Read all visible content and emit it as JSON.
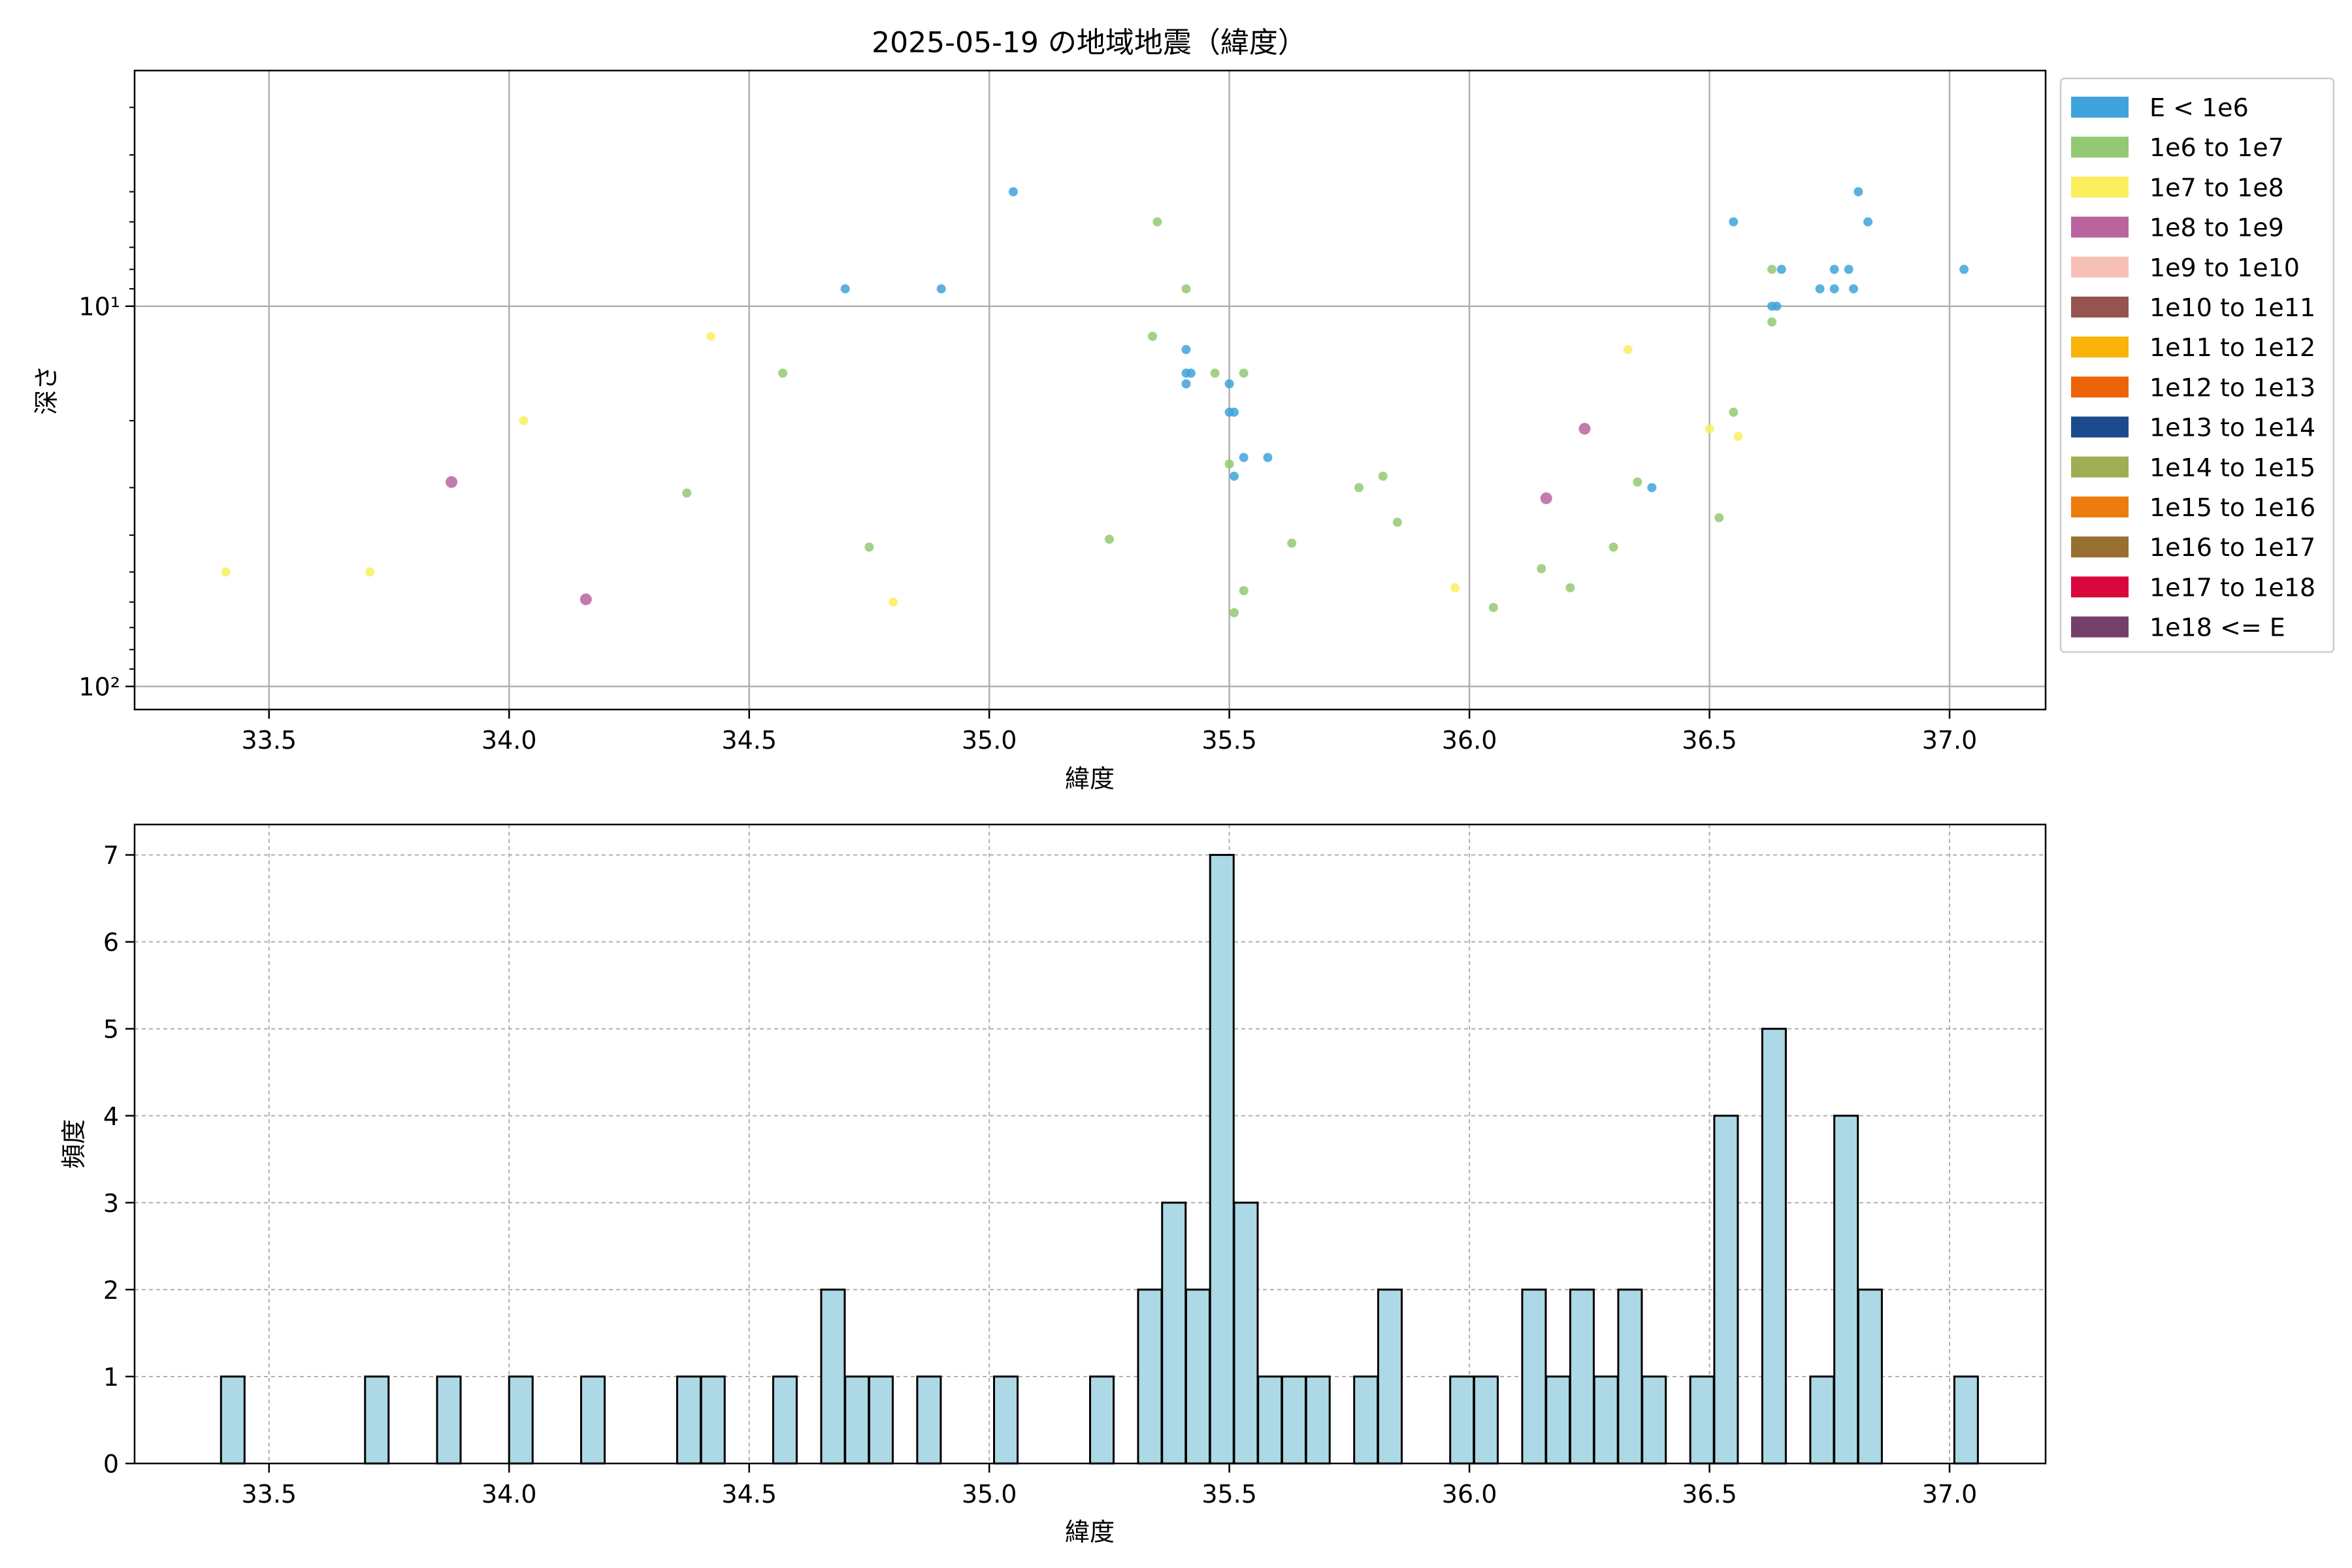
{
  "chart_data": [
    {
      "type": "scatter",
      "title": "2025-05-19 の地域地震（緯度）",
      "xlabel": "緯度",
      "ylabel": "深さ",
      "xlim": [
        33.22,
        37.2
      ],
      "ylim": [
        115,
        2.4
      ],
      "yscale": "log",
      "y_inverted": true,
      "grid": true,
      "legend_placement": "outside-right",
      "x_ticks": [
        "33.5",
        "34.0",
        "34.5",
        "35.0",
        "35.5",
        "36.0",
        "36.5",
        "37.0"
      ],
      "y_ticks": [
        {
          "value": 10,
          "label": "10¹"
        },
        {
          "value": 100,
          "label": "10²"
        }
      ],
      "legend": [
        {
          "label": "E < 1e6",
          "color": "#3fa3dc"
        },
        {
          "label": "1e6 to 1e7",
          "color": "#94c973"
        },
        {
          "label": "1e7 to 1e8",
          "color": "#fbef60"
        },
        {
          "label": "1e8 to 1e9",
          "color": "#b9649f"
        },
        {
          "label": "1e9 to 1e10",
          "color": "#f6c0b6"
        },
        {
          "label": "1e10 to 1e11",
          "color": "#955450"
        },
        {
          "label": "1e11 to 1e12",
          "color": "#fab308"
        },
        {
          "label": "1e12 to 1e13",
          "color": "#ed6307"
        },
        {
          "label": "1e13 to 1e14",
          "color": "#1c4a8f"
        },
        {
          "label": "1e14 to 1e15",
          "color": "#9eae52"
        },
        {
          "label": "1e15 to 1e16",
          "color": "#ec7c0d"
        },
        {
          "label": "1e16 to 1e17",
          "color": "#976f2e"
        },
        {
          "label": "1e17 to 1e18",
          "color": "#d8073c"
        },
        {
          "label": "1e18 <= E",
          "color": "#743f68"
        }
      ],
      "series": [
        {
          "class": 0,
          "points": [
            [
              34.7,
              9
            ],
            [
              34.9,
              9
            ],
            [
              35.05,
              5
            ],
            [
              35.41,
              13
            ],
            [
              35.41,
              15
            ],
            [
              35.42,
              15
            ],
            [
              35.41,
              16
            ],
            [
              35.5,
              16
            ],
            [
              35.5,
              19
            ],
            [
              35.51,
              19
            ],
            [
              35.53,
              25
            ],
            [
              35.58,
              25
            ],
            [
              35.51,
              28
            ],
            [
              36.38,
              30
            ],
            [
              36.55,
              6
            ],
            [
              36.63,
              10
            ],
            [
              36.64,
              10
            ],
            [
              36.65,
              8
            ],
            [
              36.73,
              9
            ],
            [
              36.76,
              9
            ],
            [
              36.76,
              8
            ],
            [
              36.79,
              8
            ],
            [
              36.8,
              9
            ],
            [
              36.81,
              5
            ],
            [
              36.83,
              6
            ],
            [
              37.03,
              8
            ]
          ]
        },
        {
          "class": 1,
          "points": [
            [
              35.35,
              6
            ],
            [
              35.41,
              9
            ],
            [
              35.34,
              12
            ],
            [
              35.47,
              15
            ],
            [
              35.53,
              15
            ],
            [
              34.57,
              15
            ],
            [
              34.37,
              31
            ],
            [
              34.75,
              43
            ],
            [
              35.25,
              41
            ],
            [
              35.5,
              26
            ],
            [
              35.53,
              56
            ],
            [
              35.51,
              64
            ],
            [
              35.63,
              42
            ],
            [
              35.77,
              30
            ],
            [
              35.82,
              28
            ],
            [
              35.85,
              37
            ],
            [
              36.05,
              62
            ],
            [
              36.15,
              49
            ],
            [
              36.21,
              55
            ],
            [
              36.3,
              43
            ],
            [
              36.35,
              29
            ],
            [
              36.52,
              36
            ],
            [
              36.55,
              19
            ],
            [
              36.63,
              8
            ],
            [
              36.63,
              11
            ]
          ]
        },
        {
          "class": 2,
          "points": [
            [
              33.41,
              50
            ],
            [
              33.71,
              50
            ],
            [
              34.03,
              20
            ],
            [
              34.42,
              12
            ],
            [
              34.8,
              60
            ],
            [
              35.97,
              55
            ],
            [
              36.33,
              13
            ],
            [
              36.5,
              21
            ],
            [
              36.56,
              22
            ]
          ]
        },
        {
          "class": 3,
          "points": [
            [
              33.88,
              29
            ],
            [
              34.16,
              59
            ],
            [
              36.16,
              32
            ],
            [
              36.24,
              21
            ]
          ]
        }
      ]
    },
    {
      "type": "bar",
      "title": "",
      "xlabel": "緯度",
      "ylabel": "頻度",
      "xlim": [
        33.22,
        37.2
      ],
      "ylim": [
        0,
        7.35
      ],
      "grid": true,
      "grid_style": "dashed",
      "bar_color": "#add8e6",
      "bar_edge_color": "#000000",
      "bin_width": 0.049,
      "x_ticks": [
        "33.5",
        "34.0",
        "34.5",
        "35.0",
        "35.5",
        "36.0",
        "36.5",
        "37.0"
      ],
      "y_ticks": [
        "0",
        "1",
        "2",
        "3",
        "4",
        "5",
        "6",
        "7"
      ],
      "bins": [
        {
          "left": 33.4,
          "count": 1
        },
        {
          "left": 33.7,
          "count": 1
        },
        {
          "left": 33.85,
          "count": 1
        },
        {
          "left": 34.0,
          "count": 1
        },
        {
          "left": 34.15,
          "count": 1
        },
        {
          "left": 34.35,
          "count": 1
        },
        {
          "left": 34.4,
          "count": 1
        },
        {
          "left": 34.55,
          "count": 1
        },
        {
          "left": 34.65,
          "count": 2
        },
        {
          "left": 34.7,
          "count": 1
        },
        {
          "left": 34.75,
          "count": 1
        },
        {
          "left": 34.85,
          "count": 1
        },
        {
          "left": 35.01,
          "count": 1
        },
        {
          "left": 35.21,
          "count": 1
        },
        {
          "left": 35.31,
          "count": 2
        },
        {
          "left": 35.36,
          "count": 3
        },
        {
          "left": 35.41,
          "count": 2
        },
        {
          "left": 35.46,
          "count": 7
        },
        {
          "left": 35.51,
          "count": 3
        },
        {
          "left": 35.56,
          "count": 1
        },
        {
          "left": 35.61,
          "count": 1
        },
        {
          "left": 35.66,
          "count": 1
        },
        {
          "left": 35.76,
          "count": 1
        },
        {
          "left": 35.81,
          "count": 2
        },
        {
          "left": 35.96,
          "count": 1
        },
        {
          "left": 36.01,
          "count": 1
        },
        {
          "left": 36.11,
          "count": 2
        },
        {
          "left": 36.16,
          "count": 1
        },
        {
          "left": 36.21,
          "count": 2
        },
        {
          "left": 36.26,
          "count": 1
        },
        {
          "left": 36.31,
          "count": 2
        },
        {
          "left": 36.36,
          "count": 1
        },
        {
          "left": 36.46,
          "count": 1
        },
        {
          "left": 36.51,
          "count": 4
        },
        {
          "left": 36.61,
          "count": 5
        },
        {
          "left": 36.71,
          "count": 1
        },
        {
          "left": 36.76,
          "count": 4
        },
        {
          "left": 36.81,
          "count": 2
        },
        {
          "left": 37.01,
          "count": 1
        }
      ]
    }
  ]
}
